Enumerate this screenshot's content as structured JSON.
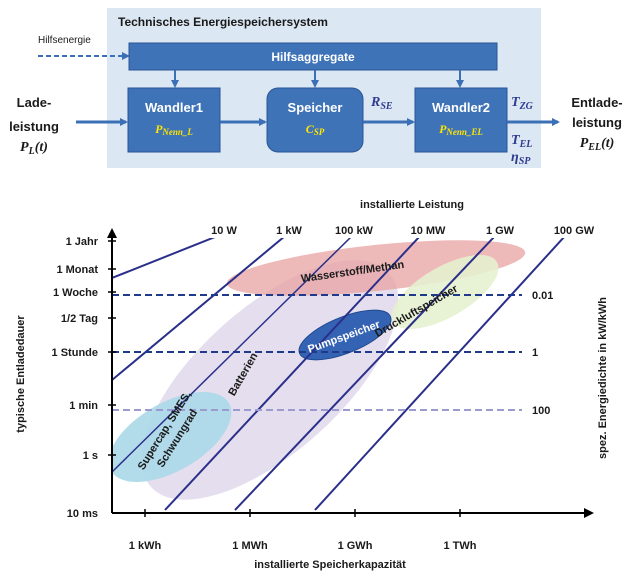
{
  "system": {
    "title": "Technisches Energiespeichersystem",
    "aux_energy": "Hilfsenergie",
    "aux_units": "Hilfsaggregate",
    "converter1": {
      "name": "Wandler1",
      "param": "P",
      "param_sub": "Nenn_L"
    },
    "storage": {
      "name": "Speicher",
      "param": "C",
      "param_sub": "SP"
    },
    "converter2": {
      "name": "Wandler2",
      "param": "P",
      "param_sub": "Nenn_EL"
    },
    "r_se": {
      "main": "R",
      "sub": "SE"
    },
    "t_zg": {
      "main": "T",
      "sub": "ZG"
    },
    "t_el": {
      "main": "T",
      "sub": "EL"
    },
    "eta_sp": {
      "main": "η",
      "sub": "SP"
    },
    "input": {
      "line1": "Lade-",
      "line2": "leistung",
      "formula_main": "P",
      "formula_sub": "L",
      "formula_arg": "(t)"
    },
    "output": {
      "line1": "Entlade-",
      "line2": "leistung",
      "formula_main": "P",
      "formula_sub": "EL",
      "formula_arg": "(t)"
    }
  },
  "chart_data": {
    "type": "scatter",
    "xlabel": "installierte Speicherkapazität",
    "ylabel": "typische Entladedauer",
    "top_axis_label": "installierte Leistung",
    "right_axis_label": "spez. Energiedichte in kW/kWh",
    "x_ticks": [
      "1 kWh",
      "1 MWh",
      "1 GWh",
      "1 TWh"
    ],
    "y_ticks": [
      "1 Jahr",
      "1 Monat",
      "1 Woche",
      "1/2 Tag",
      "1 Stunde",
      "1 min",
      "1 s",
      "10 ms"
    ],
    "power_lines": [
      "10 W",
      "1 kW",
      "100 kW",
      "10 MW",
      "1 GW",
      "100 GW"
    ],
    "density_lines": [
      "0.01",
      "1",
      "100"
    ],
    "regions": [
      {
        "name": "Wasserstoff/Methan",
        "color": "#e8a0a0"
      },
      {
        "name": "Druckluftspeicher",
        "color": "#e3f0cc"
      },
      {
        "name": "Pumpspeicher",
        "color": "#2f5fb0"
      },
      {
        "name": "Batterien",
        "color": "#ded8ec"
      },
      {
        "name": "Supercap, SMES, Schwungrad",
        "color": "#a8d8e6"
      }
    ]
  }
}
